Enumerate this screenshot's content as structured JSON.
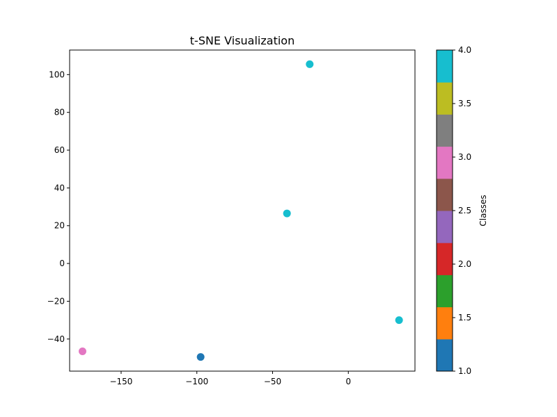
{
  "chart_data": {
    "type": "scatter",
    "title": "t-SNE Visualization",
    "xlabel": "",
    "ylabel": "",
    "xlim": [
      -184,
      44
    ],
    "ylim": [
      -57,
      113
    ],
    "xticks": [
      -150,
      -100,
      -50,
      0
    ],
    "xtick_labels": [
      "−150",
      "−100",
      "−50",
      "0"
    ],
    "yticks": [
      -40,
      -20,
      0,
      20,
      40,
      60,
      80,
      100
    ],
    "ytick_labels": [
      "−40",
      "−20",
      "0",
      "20",
      "40",
      "60",
      "80",
      "100"
    ],
    "grid": false,
    "points": [
      {
        "x": -25.5,
        "y": 105.5,
        "class": 4.0
      },
      {
        "x": -40.5,
        "y": 26.5,
        "class": 4.0
      },
      {
        "x": 33.5,
        "y": -30.0,
        "class": 4.0
      },
      {
        "x": -175.5,
        "y": -46.5,
        "class": 3.0
      },
      {
        "x": -97.5,
        "y": -49.5,
        "class": 1.0
      }
    ],
    "colorbar": {
      "label": "Classes",
      "range": [
        1.0,
        4.0
      ],
      "ticks": [
        1.0,
        1.5,
        2.0,
        2.5,
        3.0,
        3.5,
        4.0
      ],
      "tick_labels": [
        "1.0",
        "1.5",
        "2.0",
        "2.5",
        "3.0",
        "3.5",
        "4.0"
      ],
      "colors": [
        "#1f77b4",
        "#ff7f0e",
        "#2ca02c",
        "#d62728",
        "#9467bd",
        "#8c564b",
        "#e377c2",
        "#7f7f7f",
        "#bcbd22",
        "#17becf"
      ]
    }
  }
}
